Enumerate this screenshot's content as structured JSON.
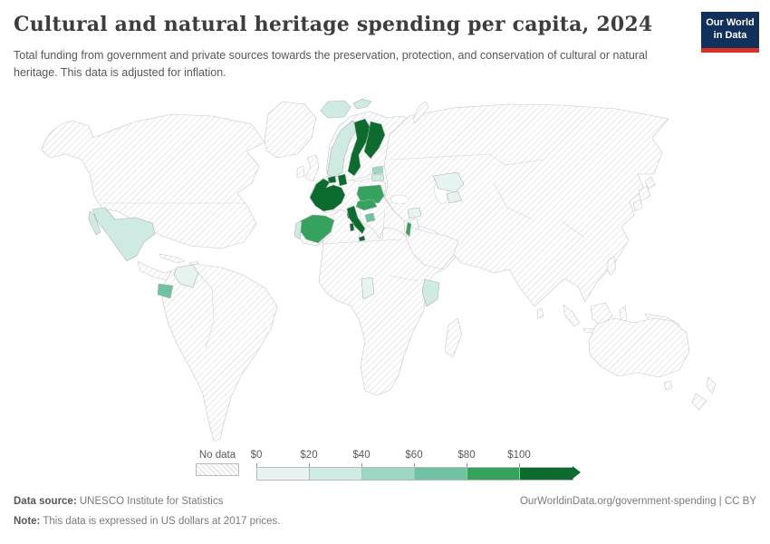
{
  "header": {
    "title": "Cultural and natural heritage spending per capita, 2024",
    "subtitle": "Total funding from government and private sources towards the preservation, protection, and conservation of cultural or natural heritage. This data is adjusted for inflation."
  },
  "logo": {
    "line1": "Our World",
    "line2": "in Data",
    "bg_color": "#12305c",
    "bar_color": "#d93025"
  },
  "footer": {
    "source_label": "Data source:",
    "source_text": " UNESCO Institute for Statistics",
    "note_label": "Note:",
    "note_text": " This data is expressed in US dollars at 2017 prices.",
    "right_text": "OurWorldinData.org/government-spending | CC BY"
  },
  "chart_data": {
    "type": "choropleth",
    "title": "Cultural and natural heritage spending per capita",
    "year": "2024",
    "unit": "US dollars per capita, adjusted for inflation (2017 prices)",
    "legend_position": "bottom",
    "legend_ticks": [
      "$0",
      "$20",
      "$40",
      "$60",
      "$80",
      "$100"
    ],
    "legend_bins": [
      {
        "range": "$0-$20",
        "color": "#e6f3f0"
      },
      {
        "range": "$20-$40",
        "color": "#cfeae2"
      },
      {
        "range": "$40-$60",
        "color": "#9dd6c2"
      },
      {
        "range": "$60-$80",
        "color": "#70c1a2"
      },
      {
        "range": "$80-$100",
        "color": "#35a35d"
      },
      {
        "range": "$100+",
        "color": "#0c6b2f"
      }
    ],
    "no_data": {
      "label": "No data",
      "style": "diagonal-hatch"
    },
    "countries": [
      {
        "name": "Sweden",
        "bin": 5
      },
      {
        "name": "Finland",
        "bin": 5
      },
      {
        "name": "Denmark",
        "bin": 5
      },
      {
        "name": "Netherlands",
        "bin": 5
      },
      {
        "name": "France",
        "bin": 5
      },
      {
        "name": "Italy",
        "bin": 5
      },
      {
        "name": "Poland",
        "bin": 4
      },
      {
        "name": "Czechia",
        "bin": 4
      },
      {
        "name": "Spain",
        "bin": 4
      },
      {
        "name": "Israel",
        "bin": 4
      },
      {
        "name": "Ecuador",
        "bin": 3
      },
      {
        "name": "Bosnia and Herzegovina",
        "bin": 3
      },
      {
        "name": "Estonia",
        "bin": 2
      },
      {
        "name": "Mexico",
        "bin": 1
      },
      {
        "name": "Iceland",
        "bin": 1
      },
      {
        "name": "Norway",
        "bin": 1
      },
      {
        "name": "Portugal",
        "bin": 1
      },
      {
        "name": "Latvia",
        "bin": 1
      },
      {
        "name": "Kenya",
        "bin": 1
      },
      {
        "name": "Colombia",
        "bin": 0
      },
      {
        "name": "Cameroon",
        "bin": 0
      },
      {
        "name": "Syria",
        "bin": 0
      },
      {
        "name": "Kazakhstan",
        "bin": 0
      },
      {
        "name": "Turkmenistan",
        "bin": 0
      }
    ]
  }
}
